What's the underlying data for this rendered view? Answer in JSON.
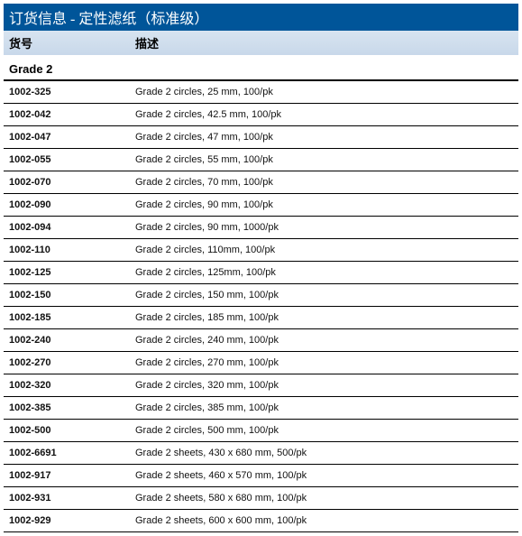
{
  "title": "订货信息 - 定性滤纸（标准级）",
  "header": {
    "col1": "货号",
    "col2": "描述"
  },
  "grade_header": "Grade 2",
  "rows": [
    {
      "sku": "1002-325",
      "desc": "Grade 2 circles, 25 mm, 100/pk"
    },
    {
      "sku": "1002-042",
      "desc": "Grade 2 circles, 42.5 mm, 100/pk"
    },
    {
      "sku": "1002-047",
      "desc": "Grade 2 circles, 47 mm, 100/pk"
    },
    {
      "sku": "1002-055",
      "desc": "Grade 2 circles, 55 mm, 100/pk"
    },
    {
      "sku": "1002-070",
      "desc": "Grade 2 circles, 70 mm, 100/pk"
    },
    {
      "sku": "1002-090",
      "desc": "Grade 2 circles, 90 mm, 100/pk"
    },
    {
      "sku": "1002-094",
      "desc": "Grade 2 circles, 90 mm, 1000/pk"
    },
    {
      "sku": "1002-110",
      "desc": "Grade 2 circles, 110mm, 100/pk"
    },
    {
      "sku": "1002-125",
      "desc": "Grade 2 circles, 125mm, 100/pk"
    },
    {
      "sku": "1002-150",
      "desc": "Grade 2 circles, 150 mm, 100/pk"
    },
    {
      "sku": "1002-185",
      "desc": "Grade 2 circles, 185 mm, 100/pk"
    },
    {
      "sku": "1002-240",
      "desc": "Grade 2 circles, 240 mm, 100/pk"
    },
    {
      "sku": "1002-270",
      "desc": "Grade 2 circles, 270 mm, 100/pk"
    },
    {
      "sku": "1002-320",
      "desc": "Grade 2 circles, 320 mm, 100/pk"
    },
    {
      "sku": "1002-385",
      "desc": "Grade 2 circles, 385 mm, 100/pk"
    },
    {
      "sku": "1002-500",
      "desc": "Grade 2 circles, 500 mm, 100/pk"
    },
    {
      "sku": "1002-6691",
      "desc": "Grade 2 sheets, 430 x 680 mm, 500/pk"
    },
    {
      "sku": "1002-917",
      "desc": "Grade 2 sheets, 460 x 570 mm, 100/pk"
    },
    {
      "sku": "1002-931",
      "desc": "Grade 2 sheets, 580 x 680 mm, 100/pk"
    },
    {
      "sku": "1002-929",
      "desc": "Grade 2 sheets, 600 x 600 mm, 100/pk"
    }
  ],
  "colors": {
    "title_bg": "#005599",
    "title_fg": "#ffffff",
    "header_bg_top": "#d8e4f0",
    "header_bg_bottom": "#c8d8ea",
    "row_border": "#000000",
    "text": "#111111"
  }
}
